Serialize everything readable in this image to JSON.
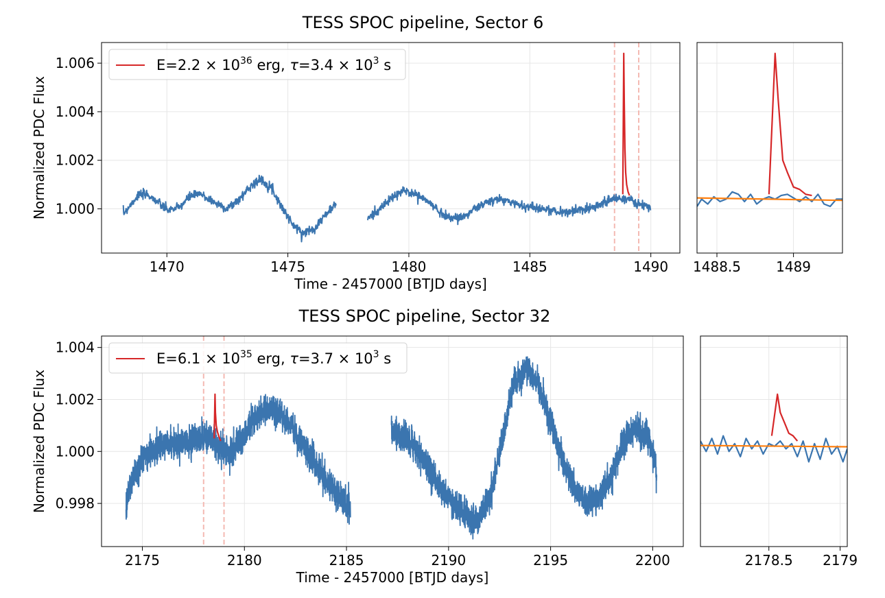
{
  "chart_data": [
    {
      "type": "line",
      "panel": "sector-6-main",
      "title": "TESS SPOC pipeline, Sector 6",
      "xlabel": "Time - 2457000 [BTJD days]",
      "ylabel": "Normalized PDC Flux",
      "xlim": [
        1467.3,
        1491.2
      ],
      "ylim": [
        0.99818,
        1.00685
      ],
      "xticks": [
        1470,
        1475,
        1480,
        1485,
        1490
      ],
      "yticks": [
        1.0,
        1.002,
        1.004,
        1.006
      ],
      "ytick_labels": [
        "1.000",
        "1.002",
        "1.004",
        "1.006"
      ],
      "grid": true,
      "legend_placement": "upper-left",
      "legend": {
        "prefix": "E=2.2",
        "times": "×",
        "base1": "10",
        "exp1": "36",
        "mid": " erg, ",
        "tau": "τ",
        "eq": "=3.4",
        "base2": "10",
        "exp2": "3",
        "suffix": " s"
      },
      "flare_window": [
        1488.5,
        1489.5
      ],
      "series": [
        {
          "name": "",
          "color": "#3b75af",
          "segments": [
            {
              "x": [
                1468.2,
                1468.8,
                1469.2,
                1469.6,
                1470.0,
                1470.5,
                1471.0,
                1471.4,
                1471.9,
                1472.5,
                1473.0,
                1473.5,
                1473.9,
                1474.3,
                1474.8,
                1475.2,
                1475.6,
                1476.1,
                1476.5,
                1477.0
              ],
              "y": [
                0.9998,
                1.00055,
                1.0006,
                1.0003,
                0.99995,
                1.00005,
                1.00055,
                1.0006,
                1.0003,
                1.0,
                1.0004,
                1.001,
                1.0012,
                1.0009,
                1.0,
                0.99935,
                0.999,
                0.9992,
                0.9997,
                1.0002
              ]
            },
            {
              "x": [
                1478.3,
                1478.8,
                1479.3,
                1479.8,
                1480.3,
                1480.8,
                1481.3,
                1481.8,
                1482.3,
                1482.8,
                1483.3,
                1483.8,
                1484.3,
                1484.8,
                1485.3,
                1485.8,
                1486.3,
                1486.8,
                1487.3,
                1487.8,
                1488.3,
                1488.7,
                1489.2,
                1489.6,
                1490.0
              ],
              "y": [
                0.9996,
                1.0,
                1.00045,
                1.00075,
                1.0006,
                1.0003,
                0.99985,
                0.9996,
                0.9997,
                1.00005,
                1.0003,
                1.0004,
                1.00025,
                1.0001,
                1.00005,
                0.99995,
                0.99985,
                0.9999,
                1.0,
                1.00015,
                1.00035,
                1.00045,
                1.00035,
                1.00015,
                1.0
              ]
            }
          ]
        },
        {
          "name": "",
          "color": "#d62728",
          "x": [
            1488.84,
            1488.88,
            1488.9,
            1488.93,
            1488.96,
            1489.0,
            1489.06,
            1489.12
          ],
          "y": [
            1.0006,
            1.0064,
            1.0045,
            1.0025,
            1.0015,
            1.001,
            1.0007,
            1.00055
          ]
        }
      ]
    },
    {
      "type": "line",
      "panel": "sector-6-zoom",
      "xlim": [
        1488.37,
        1489.32
      ],
      "ylim": [
        0.99818,
        1.00685
      ],
      "xticks": [
        1488.5,
        1489.0
      ],
      "grid": true,
      "series": [
        {
          "name": "",
          "color": "#3b75af",
          "x": [
            1488.37,
            1488.4,
            1488.44,
            1488.48,
            1488.52,
            1488.56,
            1488.6,
            1488.64,
            1488.68,
            1488.72,
            1488.76,
            1488.8,
            1488.84,
            1488.88,
            1488.92,
            1488.96,
            1489.0,
            1489.04,
            1489.08,
            1489.12,
            1489.16,
            1489.2,
            1489.24,
            1489.28,
            1489.32
          ],
          "y": [
            1.0001,
            1.0004,
            1.0002,
            1.0005,
            1.0003,
            1.0004,
            1.0007,
            1.0006,
            1.0003,
            1.0006,
            1.0002,
            1.0004,
            1.0005,
            1.0004,
            1.00055,
            1.0006,
            1.00045,
            1.0003,
            1.0005,
            1.0003,
            1.0006,
            1.0002,
            1.0001,
            1.0004,
            1.0004
          ]
        },
        {
          "name": "",
          "color": "#d62728",
          "x": [
            1488.84,
            1488.88,
            1488.9,
            1488.93,
            1488.96,
            1489.0,
            1489.04,
            1489.08,
            1489.12
          ],
          "y": [
            1.0006,
            1.0064,
            1.0045,
            1.002,
            1.0015,
            1.0009,
            1.0008,
            1.0006,
            1.00055
          ]
        },
        {
          "name": "",
          "color": "#ff7f0e",
          "x": [
            1488.37,
            1489.32
          ],
          "y": [
            1.00045,
            1.00035
          ]
        }
      ]
    },
    {
      "type": "line",
      "panel": "sector-32-main",
      "title": "TESS SPOC pipeline, Sector 32",
      "xlabel": "Time - 2457000 [BTJD days]",
      "ylabel": "Normalized PDC Flux",
      "xlim": [
        2173.0,
        2201.5
      ],
      "ylim": [
        0.99634,
        1.00444
      ],
      "xticks": [
        2175,
        2180,
        2185,
        2190,
        2195,
        2200
      ],
      "yticks": [
        0.998,
        1.0,
        1.002,
        1.004
      ],
      "ytick_labels": [
        "0.998",
        "1.000",
        "1.002",
        "1.004"
      ],
      "grid": true,
      "legend_placement": "upper-left",
      "legend": {
        "prefix": "E=6.1",
        "times": "×",
        "base1": "10",
        "exp1": "35",
        "mid": " erg, ",
        "tau": "τ",
        "eq": "=3.7",
        "base2": "10",
        "exp2": "3",
        "suffix": " s"
      },
      "flare_window": [
        2178.0,
        2179.0
      ],
      "series": [
        {
          "name": "",
          "color": "#3b75af",
          "segments": [
            {
              "x": [
                2174.2,
                2174.4,
                2175.0,
                2175.6,
                2176.2,
                2176.8,
                2177.4,
                2178.0,
                2178.6,
                2179.2,
                2179.8,
                2180.4,
                2181.0,
                2181.6,
                2182.2,
                2182.8,
                2183.4,
                2184.0,
                2184.6,
                2185.2
              ],
              "y": [
                0.9979,
                0.9987,
                0.9997,
                1.0001,
                1.0003,
                1.0002,
                1.0004,
                1.0006,
                1.0003,
                0.9999,
                1.0004,
                1.0012,
                1.0016,
                1.0015,
                1.0011,
                1.0004,
                0.9996,
                0.9989,
                0.9983,
                0.9978
              ]
            },
            {
              "x": [
                2187.2,
                2187.8,
                2188.4,
                2189.0,
                2189.6,
                2190.2,
                2190.8,
                2191.4,
                2192.0,
                2192.6,
                2193.2,
                2193.8,
                2194.4,
                2195.0,
                2195.6,
                2196.2,
                2196.8,
                2197.4,
                2198.0,
                2198.6,
                2199.2,
                2199.8,
                2200.2
              ],
              "y": [
                1.0008,
                1.0006,
                1.0001,
                0.9994,
                0.9986,
                0.998,
                0.9975,
                0.9973,
                0.9981,
                1.0003,
                1.0026,
                1.0032,
                1.0026,
                1.0011,
                0.9996,
                0.9985,
                0.998,
                0.9982,
                0.9991,
                1.0004,
                1.0009,
                1.0006,
                0.9992
              ]
            }
          ]
        },
        {
          "name": "",
          "color": "#d62728",
          "x": [
            2178.52,
            2178.56,
            2178.58,
            2178.62,
            2178.68,
            2178.76,
            2178.84
          ],
          "y": [
            1.0005,
            1.0022,
            1.0015,
            1.001,
            1.00075,
            1.00055,
            1.0004
          ]
        }
      ]
    },
    {
      "type": "line",
      "panel": "sector-32-zoom",
      "xlim": [
        2178.02,
        2179.05
      ],
      "ylim": [
        0.99634,
        1.00444
      ],
      "xticks": [
        2178.5,
        2179.0
      ],
      "grid": true,
      "series": [
        {
          "name": "",
          "color": "#3b75af",
          "x": [
            2178.02,
            2178.06,
            2178.1,
            2178.14,
            2178.18,
            2178.22,
            2178.26,
            2178.3,
            2178.34,
            2178.38,
            2178.42,
            2178.46,
            2178.5,
            2178.54,
            2178.58,
            2178.62,
            2178.66,
            2178.7,
            2178.74,
            2178.78,
            2178.82,
            2178.86,
            2178.9,
            2178.94,
            2178.98,
            2179.02,
            2179.05
          ],
          "y": [
            1.0004,
            1.0,
            1.0005,
            0.9999,
            1.0006,
            1.0,
            1.0003,
            0.9998,
            1.0005,
            1.0001,
            1.0004,
            0.9999,
            1.0003,
            1.0002,
            1.0004,
            1.0001,
            1.0003,
            0.9998,
            1.0004,
            0.9996,
            1.0003,
            0.9997,
            1.0005,
            0.9999,
            1.0002,
            0.9996,
            1.0001
          ]
        },
        {
          "name": "",
          "color": "#d62728",
          "x": [
            2178.52,
            2178.56,
            2178.58,
            2178.61,
            2178.64,
            2178.67,
            2178.7
          ],
          "y": [
            1.0006,
            1.0022,
            1.0015,
            1.0011,
            1.0007,
            1.0006,
            1.0004
          ]
        },
        {
          "name": "",
          "color": "#ff7f0e",
          "x": [
            2178.02,
            2179.05
          ],
          "y": [
            1.00023,
            1.00018
          ]
        }
      ]
    }
  ]
}
